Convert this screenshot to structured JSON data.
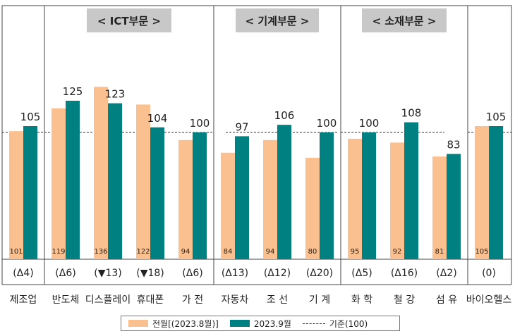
{
  "chart_data": {
    "type": "bar",
    "title": "",
    "xlabel": "",
    "ylabel": "",
    "ylim": [
      0,
      145
    ],
    "sections": [
      {
        "label": "< ICT부문 >",
        "categories": [
          "반도체",
          "디스플레이",
          "휴대폰",
          "가 전"
        ]
      },
      {
        "label": "< 기계부문 >",
        "categories": [
          "자동차",
          "조 선",
          "기 계"
        ]
      },
      {
        "label": "< 소재부문 >",
        "categories": [
          "화 학",
          "철 강",
          "섬 유"
        ]
      }
    ],
    "categories": [
      "제조업",
      "반도체",
      "디스플레이",
      "휴대폰",
      "가 전",
      "자동차",
      "조 선",
      "기 계",
      "화 학",
      "철 강",
      "섬 유",
      "바이오헬스"
    ],
    "series": [
      {
        "name": "전월[(2023.8월)]",
        "color": "#FAC090",
        "values": [
          101,
          119,
          136,
          122,
          94,
          84,
          94,
          80,
          95,
          92,
          81,
          105
        ]
      },
      {
        "name": "2023.9월",
        "color": "#008080",
        "values": [
          105,
          125,
          123,
          104,
          100,
          97,
          106,
          100,
          100,
          108,
          83,
          105
        ]
      }
    ],
    "changes": [
      "(Δ4)",
      "(Δ6)",
      "(▼13)",
      "(▼18)",
      "(Δ6)",
      "(Δ13)",
      "(Δ12)",
      "(Δ20)",
      "(Δ5)",
      "(Δ16)",
      "(Δ2)",
      "(0)"
    ],
    "reference": {
      "name": "기준(100)",
      "value": 100
    },
    "grid": false,
    "legend_position": "bottom"
  }
}
